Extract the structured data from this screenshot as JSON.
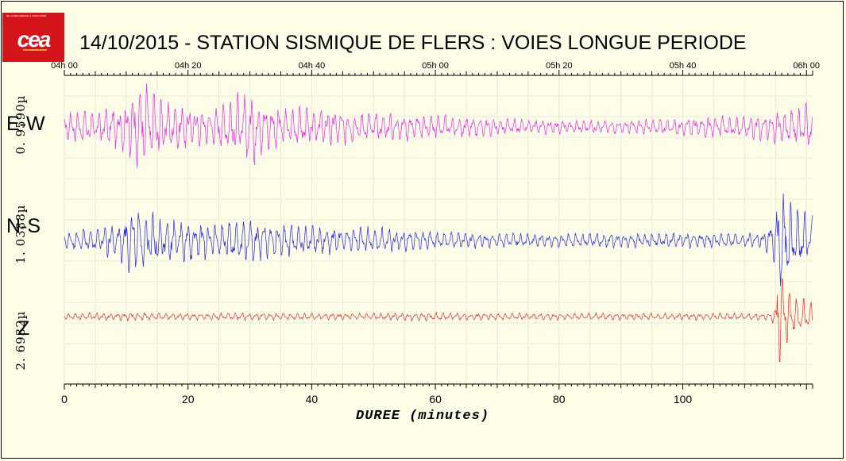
{
  "logo": {
    "text": "cea",
    "tagline": "DE LA RECHERCHE À L'INDUSTRIE"
  },
  "chart_data": {
    "type": "line",
    "title": "14/10/2015  -  STATION SISMIQUE DE FLERS : VOIES LONGUE PERIODE",
    "xlabel": "DUREE (minutes)",
    "xlim": [
      0,
      121
    ],
    "x_ticks": [
      0,
      20,
      40,
      60,
      80,
      100
    ],
    "x_tick_labels": [
      "0",
      "20",
      "40",
      "60",
      "80",
      "100"
    ],
    "top_time_ticks": [
      0,
      20,
      40,
      60,
      80,
      100,
      120
    ],
    "top_time_labels": [
      "04h 00",
      "04h 20",
      "04h 40",
      "05h 00",
      "05h 20",
      "05h 40",
      "06h 00"
    ],
    "grid": true,
    "series": [
      {
        "name": "E-W",
        "scale": "0. 9590µ",
        "color": "#ee22ee",
        "env_minutes": [
          0,
          5,
          9,
          11,
          12.5,
          14,
          16,
          18,
          20,
          24,
          27,
          30,
          31,
          32,
          35,
          40,
          45,
          50,
          55,
          60,
          70,
          75,
          80,
          90,
          100,
          105,
          110,
          113,
          116,
          118,
          120,
          121
        ],
        "env_amp": [
          0.3,
          0.38,
          0.45,
          0.75,
          1.0,
          0.85,
          0.55,
          0.55,
          0.45,
          0.35,
          0.55,
          0.9,
          0.95,
          0.55,
          0.4,
          0.4,
          0.35,
          0.3,
          0.28,
          0.25,
          0.18,
          0.15,
          0.15,
          0.15,
          0.18,
          0.25,
          0.22,
          0.3,
          0.35,
          0.4,
          0.45,
          0.5
        ]
      },
      {
        "name": "N-S",
        "scale": "1. 0388µ",
        "color": "#2222ee",
        "env_minutes": [
          0,
          5,
          9,
          11,
          13,
          16,
          20,
          25,
          30,
          35,
          40,
          45,
          50,
          55,
          60,
          70,
          80,
          90,
          100,
          110,
          113,
          115,
          115.5,
          116,
          118,
          120,
          121
        ],
        "env_amp": [
          0.15,
          0.22,
          0.35,
          0.55,
          0.45,
          0.4,
          0.35,
          0.3,
          0.35,
          0.3,
          0.25,
          0.2,
          0.22,
          0.18,
          0.15,
          0.12,
          0.12,
          0.12,
          0.12,
          0.12,
          0.15,
          0.4,
          1.0,
          0.85,
          0.55,
          0.45,
          0.4
        ]
      },
      {
        "name": "Z",
        "scale": "2. 6932µ",
        "color": "#ee2222",
        "env_minutes": [
          0,
          10,
          20,
          30,
          40,
          50,
          60,
          70,
          80,
          90,
          100,
          110,
          114,
          115,
          115.3,
          115.8,
          116.5,
          118,
          120,
          121
        ],
        "env_amp": [
          0.05,
          0.06,
          0.05,
          0.06,
          0.05,
          0.05,
          0.06,
          0.05,
          0.05,
          0.05,
          0.05,
          0.05,
          0.06,
          0.12,
          1.0,
          0.85,
          0.45,
          0.3,
          0.25,
          0.22
        ]
      }
    ]
  }
}
